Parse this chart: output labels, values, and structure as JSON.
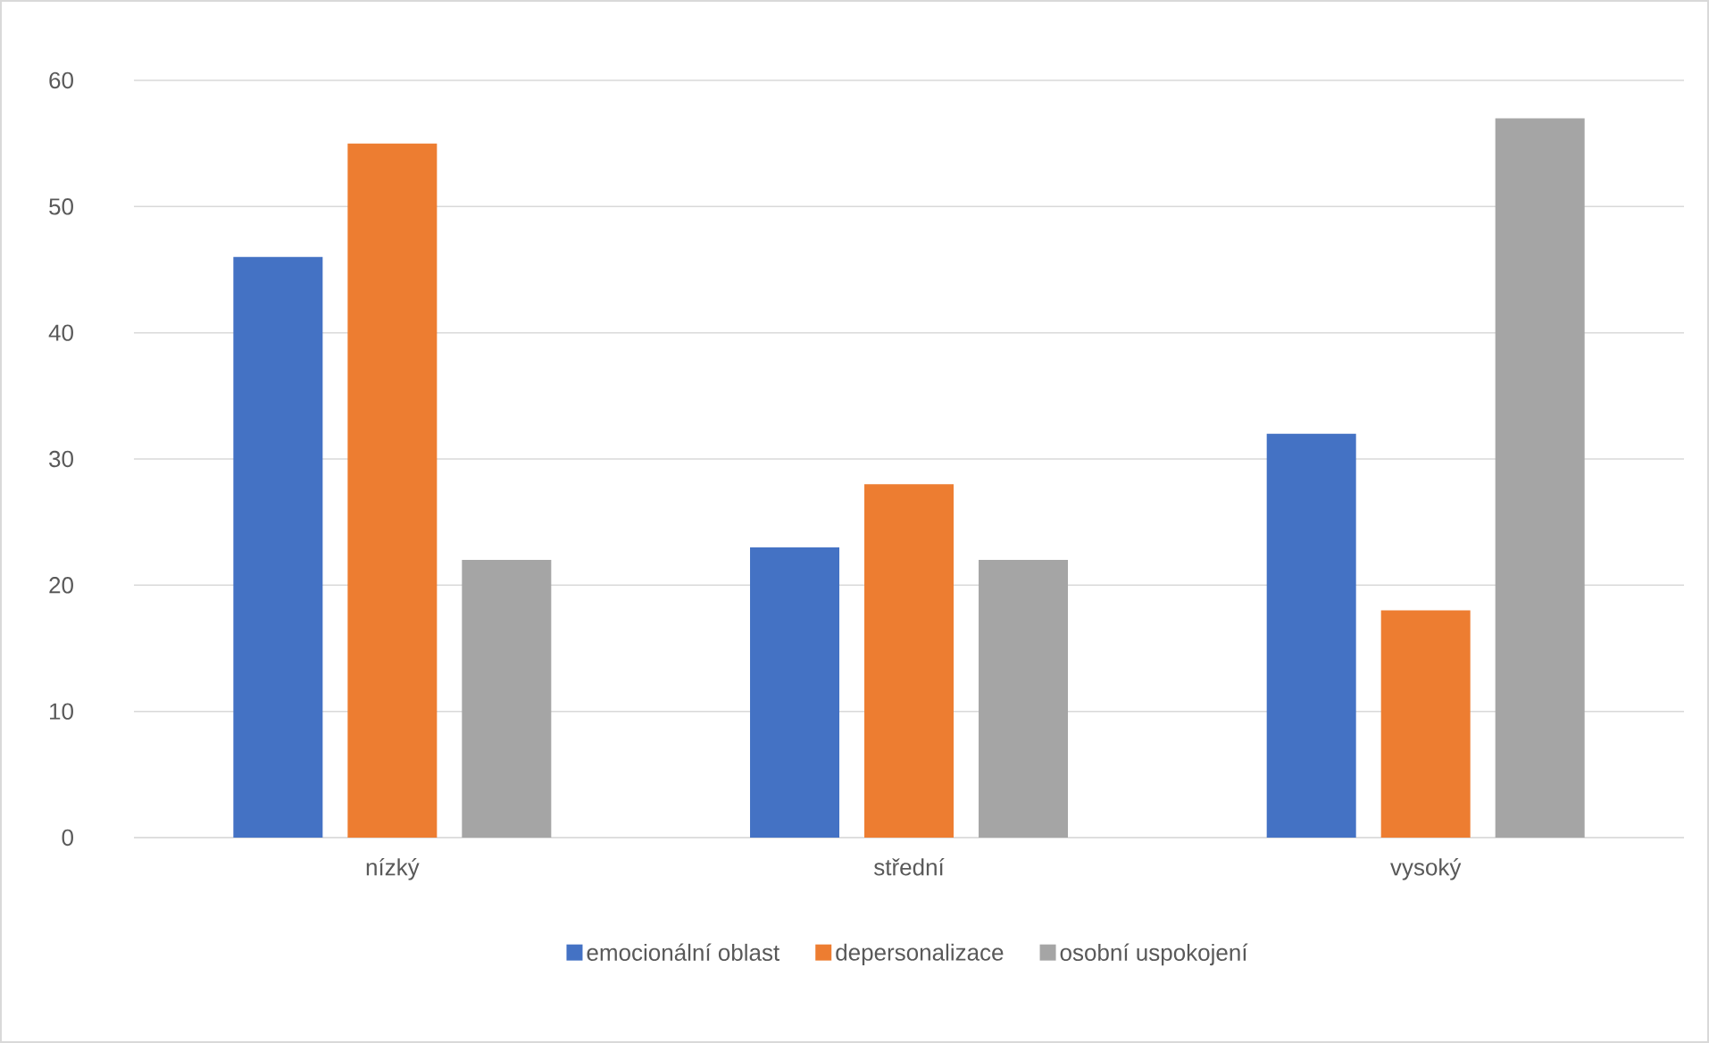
{
  "chart_data": {
    "type": "bar",
    "categories": [
      "nízký",
      "střední",
      "vysoký"
    ],
    "series": [
      {
        "name": "emocionální oblast",
        "color": "#4472c4",
        "values": [
          46,
          23,
          32
        ]
      },
      {
        "name": "depersonalizace",
        "color": "#ed7d31",
        "values": [
          55,
          28,
          18
        ]
      },
      {
        "name": "osobní uspokojení",
        "color": "#a5a5a5",
        "values": [
          22,
          22,
          57
        ]
      }
    ],
    "ylim": [
      0,
      60
    ],
    "yticks": [
      0,
      10,
      20,
      30,
      40,
      50,
      60
    ],
    "grid": "y",
    "legend": "bottom"
  }
}
